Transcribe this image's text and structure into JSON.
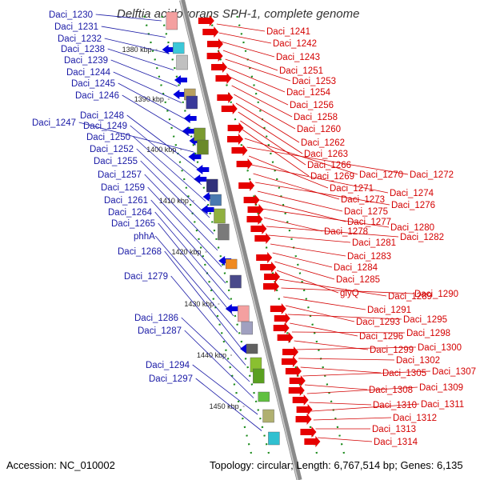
{
  "title": "Delftia acidovorans SPH-1, complete genome",
  "accession": "Accession: NC_010002",
  "summary": "Topology: circular; Length: 6,767,514 bp; Genes: 6,135",
  "colors": {
    "left_label": "#1a1aa6",
    "right_label": "#d40000",
    "backbone": "#8a8a8a",
    "dots": "#1a8a1a",
    "arrow_red": "#e60000",
    "arrow_blue": "#0000dd"
  },
  "ticks": [
    "1380 kbp",
    "1390 kbp",
    "1400 kbp",
    "1410 kbp",
    "1420 kbp",
    "1430 kbp",
    "1440 kbp",
    "1450 kbp"
  ],
  "left_labels": [
    "Daci_1230",
    "Daci_1231",
    "Daci_1232",
    "Daci_1238",
    "Daci_1239",
    "Daci_1244",
    "Daci_1245",
    "Daci_1246",
    "Daci_1247",
    "Daci_1248",
    "Daci_1249",
    "Daci_1250",
    "Daci_1252",
    "Daci_1255",
    "Daci_1257",
    "Daci_1259",
    "Daci_1261",
    "Daci_1264",
    "Daci_1265",
    "phhA",
    "Daci_1268",
    "Daci_1279",
    "Daci_1286",
    "Daci_1287",
    "Daci_1294",
    "Daci_1297"
  ],
  "right_labels": [
    "Daci_1241",
    "Daci_1242",
    "Daci_1243",
    "Daci_1251",
    "Daci_1253",
    "Daci_1254",
    "Daci_1256",
    "Daci_1258",
    "Daci_1260",
    "Daci_1262",
    "Daci_1263",
    "Daci_1266",
    "Daci_1269",
    "Daci_1270",
    "Daci_1272",
    "Daci_1271",
    "Daci_1274",
    "Daci_1273",
    "Daci_1276",
    "Daci_1275",
    "Daci_1277",
    "Daci_1280",
    "Daci_1278",
    "Daci_1282",
    "Daci_1281",
    "Daci_1283",
    "Daci_1284",
    "Daci_1285",
    "glyQ",
    "Daci_1289",
    "Daci_1290",
    "Daci_1291",
    "Daci_1293",
    "Daci_1295",
    "Daci_1296",
    "Daci_1298",
    "Daci_1299",
    "Daci_1300",
    "Daci_1302",
    "Daci_1305",
    "Daci_1307",
    "Daci_1308",
    "Daci_1309",
    "Daci_1310",
    "Daci_1311",
    "Daci_1312",
    "Daci_1313",
    "Daci_1314"
  ]
}
